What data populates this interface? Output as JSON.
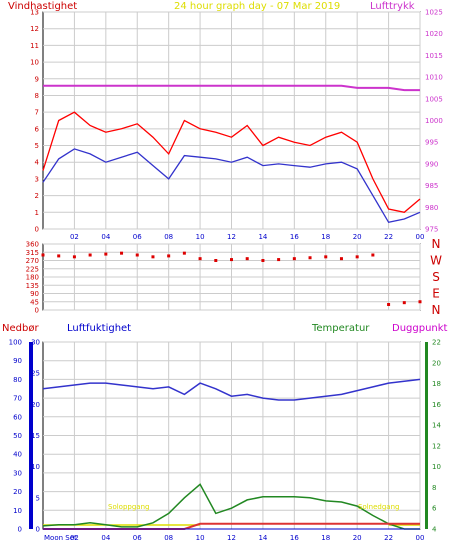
{
  "header": {
    "title": "24 hour graph day - 07 Mar 2019",
    "left_label": "Vindhastighet",
    "right_label": "Lufttrykk"
  },
  "lower_labels": {
    "precip": "Nedbør",
    "humidity": "Luftfuktighet",
    "temperature": "Temperatur",
    "dewpoint": "Duggpunkt",
    "sunrise": "Soloppgang",
    "sunset": "Solnedgang",
    "moon": "Moon Set"
  },
  "colors": {
    "wind": "#ff0000",
    "wind_avg": "#3333cc",
    "pressure": "#cc33cc",
    "direction": "#dd0000",
    "humidity": "#3333cc",
    "temperature": "#228822",
    "dewpoint": "#cc00cc",
    "precip": "#0000cc",
    "sun": "#dddd00"
  },
  "chart_data": [
    {
      "type": "line",
      "title": "24 hour graph day - 07 Mar 2019",
      "x_ticks": [
        "02",
        "04",
        "06",
        "08",
        "10",
        "12",
        "14",
        "16",
        "18",
        "20",
        "22",
        "00"
      ],
      "xlim": [
        0,
        24
      ],
      "ylim_left": [
        0,
        13
      ],
      "ylim_right": [
        975,
        1025
      ],
      "y_ticks_left": [
        0,
        1,
        2,
        3,
        4,
        5,
        6,
        7,
        8,
        9,
        10,
        11,
        12,
        13
      ],
      "y_ticks_right": [
        975,
        980,
        985,
        990,
        995,
        1000,
        1005,
        1010,
        1015,
        1020,
        1025
      ],
      "x": [
        0,
        1,
        2,
        3,
        4,
        5,
        6,
        7,
        8,
        9,
        10,
        11,
        12,
        13,
        14,
        15,
        16,
        17,
        18,
        19,
        20,
        21,
        22,
        23,
        24
      ],
      "series": [
        {
          "name": "Vindhastighet",
          "axis": "left",
          "values": [
            3.5,
            6.5,
            7.0,
            6.2,
            5.8,
            6.0,
            6.3,
            5.5,
            4.5,
            6.5,
            6.0,
            5.8,
            5.5,
            6.2,
            5.0,
            5.5,
            5.2,
            5.0,
            5.5,
            5.8,
            5.2,
            3.0,
            1.2,
            1.0,
            1.8
          ]
        },
        {
          "name": "Vindhastighet (avg)",
          "axis": "left",
          "values": [
            2.8,
            4.2,
            4.8,
            4.5,
            4.0,
            4.3,
            4.6,
            3.8,
            3.0,
            4.4,
            4.3,
            4.2,
            4.0,
            4.3,
            3.8,
            3.9,
            3.8,
            3.7,
            3.9,
            4.0,
            3.6,
            2.0,
            0.4,
            0.6,
            1.0
          ]
        },
        {
          "name": "Lufttrykk",
          "axis": "right",
          "values": [
            1008,
            1008,
            1008,
            1008,
            1008,
            1008,
            1008,
            1008,
            1008,
            1008,
            1008,
            1008,
            1008,
            1008,
            1008,
            1008,
            1008,
            1008,
            1008,
            1008,
            1007.5,
            1007.5,
            1007.5,
            1007,
            1007
          ]
        }
      ]
    },
    {
      "type": "scatter",
      "ylim": [
        0,
        360
      ],
      "y_ticks": [
        0,
        45,
        90,
        135,
        180,
        225,
        270,
        315,
        360
      ],
      "direction_labels": [
        "N",
        "W",
        "S",
        "E",
        "N"
      ],
      "xlim": [
        0,
        24
      ],
      "x": [
        0,
        1,
        2,
        3,
        4,
        5,
        6,
        7,
        8,
        9,
        10,
        11,
        12,
        13,
        14,
        15,
        16,
        17,
        18,
        19,
        20,
        21,
        22,
        23,
        24
      ],
      "values": [
        300,
        295,
        290,
        300,
        305,
        310,
        300,
        290,
        295,
        310,
        280,
        270,
        275,
        280,
        270,
        275,
        280,
        285,
        290,
        280,
        290,
        300,
        30,
        40,
        45
      ]
    },
    {
      "type": "line",
      "xlim": [
        0,
        24
      ],
      "x_ticks": [
        "02",
        "04",
        "06",
        "08",
        "10",
        "12",
        "14",
        "16",
        "18",
        "20",
        "22",
        "00"
      ],
      "ylim_precip": [
        0,
        100
      ],
      "y_ticks_precip": [
        0,
        10,
        20,
        30,
        40,
        50,
        60,
        70,
        80,
        90,
        100
      ],
      "ylim_humidity": [
        0,
        30
      ],
      "y_ticks_humidity": [
        0,
        5,
        10,
        15,
        20,
        25,
        30
      ],
      "ylim_temp": [
        4,
        22
      ],
      "y_ticks_temp": [
        4,
        6,
        8,
        10,
        12,
        14,
        16,
        18,
        20,
        22
      ],
      "x": [
        0,
        1,
        2,
        3,
        4,
        5,
        6,
        7,
        8,
        9,
        10,
        11,
        12,
        13,
        14,
        15,
        16,
        17,
        18,
        19,
        20,
        21,
        22,
        23,
        24
      ],
      "series": [
        {
          "name": "Luftfuktighet",
          "axis": "precip",
          "values": [
            75,
            76,
            77,
            78,
            78,
            77,
            76,
            75,
            76,
            72,
            78,
            75,
            71,
            72,
            70,
            69,
            69,
            70,
            71,
            72,
            74,
            76,
            78,
            79,
            80
          ]
        },
        {
          "name": "Temperatur",
          "axis": "temp",
          "values": [
            4.3,
            4.4,
            4.4,
            4.6,
            4.4,
            4.2,
            4.2,
            4.6,
            5.5,
            7.0,
            8.3,
            5.5,
            6.0,
            6.8,
            7.1,
            7.1,
            7.1,
            7.0,
            6.7,
            6.6,
            6.2,
            5.3,
            4.5,
            3.9,
            3.5
          ]
        },
        {
          "name": "Duggpunkt",
          "axis": "temp",
          "values": [
            4.0,
            4.0,
            4.0,
            4.0,
            4.0,
            4.0,
            4.0,
            4.0,
            4.0,
            4.0,
            4.5,
            4.5,
            4.5,
            4.5,
            4.5,
            4.5,
            4.5,
            4.5,
            4.5,
            4.5,
            4.5,
            4.5,
            4.5,
            4.5,
            4.5
          ]
        },
        {
          "name": "Nedbør",
          "axis": "precip",
          "values": [
            0,
            0,
            0,
            0,
            0,
            0,
            0,
            0,
            0,
            0,
            0,
            0,
            0,
            0,
            0,
            0,
            0,
            0,
            0,
            0,
            0,
            0,
            0,
            0,
            0
          ]
        }
      ]
    }
  ]
}
